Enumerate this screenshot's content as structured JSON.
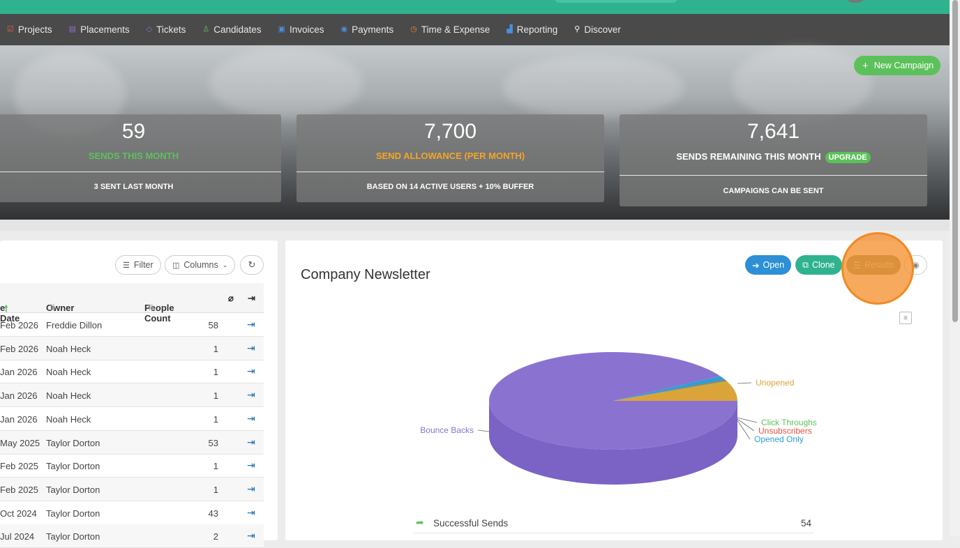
{
  "nav": {
    "items": [
      {
        "label": "Projects",
        "icon": "checkbox-icon",
        "color": "#e85c4a"
      },
      {
        "label": "Placements",
        "icon": "briefcase-icon",
        "color": "#8e6fd0"
      },
      {
        "label": "Tickets",
        "icon": "tag-icon",
        "color": "#8e6fd0"
      },
      {
        "label": "Candidates",
        "icon": "person-icon",
        "color": "#5cc15a"
      },
      {
        "label": "Invoices",
        "icon": "invoice-icon",
        "color": "#4a8fe0"
      },
      {
        "label": "Payments",
        "icon": "coins-icon",
        "color": "#4a8fe0"
      },
      {
        "label": "Time & Expense",
        "icon": "clock-icon",
        "color": "#f08a24"
      },
      {
        "label": "Reporting",
        "icon": "bar-chart-icon",
        "color": "#4a8fe0"
      },
      {
        "label": "Discover",
        "icon": "search-icon",
        "color": "#ffffff"
      }
    ]
  },
  "hero": {
    "new_campaign_label": "New Campaign",
    "cards": [
      {
        "value": "59",
        "label": "SENDS THIS MONTH",
        "label_color": "#5cc15a",
        "footer": "3 SENT LAST MONTH"
      },
      {
        "value": "7,700",
        "label": "SEND ALLOWANCE (PER MONTH)",
        "label_color": "#f5a623",
        "footer": "BASED ON 14 ACTIVE USERS + 10% BUFFER"
      },
      {
        "value": "7,641",
        "label": "SENDS REMAINING THIS MONTH",
        "label_color": "#ffffff",
        "badge": "UPGRADE",
        "footer": "CAMPAIGNS CAN BE SENT"
      }
    ]
  },
  "table": {
    "filter_label": "Filter",
    "columns_label": "Columns",
    "headers": {
      "date": "e Date",
      "owner": "Owner",
      "count": "People Count"
    },
    "rows": [
      {
        "date": "Feb 2026",
        "owner": "Freddie Dillon",
        "count": "58"
      },
      {
        "date": "Feb 2026",
        "owner": "Noah Heck",
        "count": "1"
      },
      {
        "date": "Jan 2026",
        "owner": "Noah Heck",
        "count": "1"
      },
      {
        "date": "Jan 2026",
        "owner": "Noah Heck",
        "count": "1"
      },
      {
        "date": "Jan 2026",
        "owner": "Noah Heck",
        "count": "1"
      },
      {
        "date": "May 2025",
        "owner": "Taylor Dorton",
        "count": "53"
      },
      {
        "date": "Feb 2025",
        "owner": "Taylor Dorton",
        "count": "1"
      },
      {
        "date": "Feb 2025",
        "owner": "Taylor Dorton",
        "count": "1"
      },
      {
        "date": "Oct 2024",
        "owner": "Taylor Dorton",
        "count": "43"
      },
      {
        "date": "Jul 2024",
        "owner": "Taylor Dorton",
        "count": "2"
      }
    ]
  },
  "campaign": {
    "title": "Company Newsletter",
    "open_label": "Open",
    "clone_label": "Clone",
    "results_label": "Results",
    "colors": {
      "open": "#2d8fd6",
      "clone": "#2fb38f",
      "results": "#8f9a78"
    }
  },
  "chart_data": {
    "type": "pie",
    "slices": [
      {
        "name": "Bounce Backs",
        "value": 91.5,
        "color": "#8a72d1"
      },
      {
        "name": "Unopened",
        "value": 6.5,
        "color": "#dba43a"
      },
      {
        "name": "Click Throughs",
        "value": 0.3,
        "color": "#5cc15a"
      },
      {
        "name": "Unsubscribers",
        "value": 0.3,
        "color": "#e0533e"
      },
      {
        "name": "Opened Only",
        "value": 1.4,
        "color": "#2d9fd6"
      }
    ]
  },
  "summary": [
    {
      "label": "Successful Sends",
      "value": "54"
    }
  ]
}
